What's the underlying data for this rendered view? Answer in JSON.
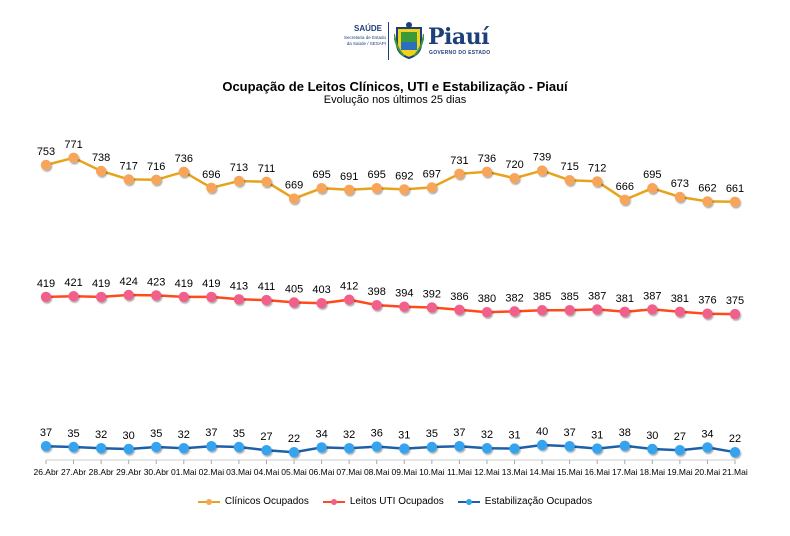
{
  "header": {
    "logo_saude": "SAÚDE",
    "logo_secretaria": "Secretaria de Estado da Saúde / SESAPI",
    "logo_piaui": "Piauí",
    "logo_governo": "GOVERNO DO ESTADO"
  },
  "chart_data": {
    "type": "line",
    "title": "Ocupação de Leitos Clínicos, UTI e Estabilização - Piauí",
    "subtitle": "Evolução nos últimos 25 dias",
    "xlabel": "",
    "ylabel": "",
    "grid": false,
    "legend_position": "bottom",
    "categories": [
      "26.Abr",
      "27.Abr",
      "28.Abr",
      "29.Abr",
      "30.Abr",
      "01.Mai",
      "02.Mai",
      "03.Mai",
      "04.Mai",
      "05.Mai",
      "06.Mai",
      "07.Mai",
      "08.Mai",
      "09.Mai",
      "10.Mai",
      "11.Mai",
      "12.Mai",
      "13.Mai",
      "14.Mai",
      "15.Mai",
      "16.Mai",
      "17.Mai",
      "18.Mai",
      "19.Mai",
      "20.Mai",
      "21.Mai"
    ],
    "series": [
      {
        "name": "Clínicos Ocupados",
        "line_color": "#e8a31c",
        "marker_color": "#f7a55a",
        "values": [
          753,
          771,
          738,
          717,
          716,
          736,
          696,
          713,
          711,
          669,
          695,
          691,
          695,
          692,
          697,
          731,
          736,
          720,
          739,
          715,
          712,
          666,
          695,
          673,
          662,
          661
        ]
      },
      {
        "name": "Leitos UTI Ocupados",
        "line_color": "#ff4a1c",
        "marker_color": "#f0608a",
        "values": [
          419,
          421,
          419,
          424,
          423,
          419,
          419,
          413,
          411,
          405,
          403,
          412,
          398,
          394,
          392,
          386,
          380,
          382,
          385,
          385,
          387,
          381,
          387,
          381,
          376,
          375
        ]
      },
      {
        "name": "Estabilização Ocupados",
        "line_color": "#1f5fa8",
        "marker_color": "#34a3ee",
        "values": [
          37,
          35,
          32,
          30,
          35,
          32,
          37,
          35,
          27,
          22,
          34,
          32,
          36,
          31,
          35,
          37,
          32,
          31,
          40,
          37,
          31,
          38,
          30,
          27,
          34,
          22
        ]
      }
    ]
  }
}
